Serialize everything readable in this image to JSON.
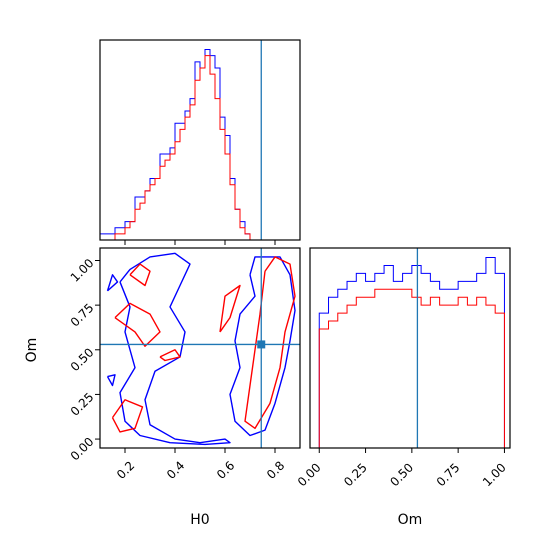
{
  "chart_data": [
    {
      "type": "histogram",
      "panel": "H0 marginal",
      "x_range": [
        0.1,
        0.9
      ],
      "truth": 0.745,
      "bin_edges_start": 0.1,
      "bin_width": 0.02,
      "series": [
        {
          "color": "#0000ff",
          "values": [
            1,
            1,
            1,
            2,
            2,
            3,
            3,
            7,
            7,
            8,
            10,
            10,
            14,
            14,
            15,
            19,
            19,
            21,
            23,
            29,
            28,
            31,
            30,
            28,
            20,
            17,
            10,
            5,
            3,
            1
          ]
        },
        {
          "color": "#ff0000",
          "values": [
            0,
            0,
            0,
            1,
            1,
            2,
            3,
            5,
            6,
            8,
            9,
            10,
            12,
            13,
            14,
            16,
            18,
            20,
            22,
            26,
            28,
            30,
            27,
            23,
            18,
            14,
            9,
            5,
            2,
            1
          ]
        }
      ]
    },
    {
      "type": "histogram",
      "panel": "Om marginal",
      "x_range": [
        -0.05,
        1.03
      ],
      "truth": 0.53,
      "ticks": [
        "0.00",
        "0.25",
        "0.50",
        "0.75",
        "1.00"
      ],
      "xlabel": "Om",
      "bin_edges_start": 0.0,
      "bin_width": 0.05,
      "series": [
        {
          "color": "#0000ff",
          "values": [
            17,
            19,
            20,
            21,
            22,
            21,
            22,
            23,
            21,
            22,
            23,
            22,
            21,
            20,
            20,
            21,
            21,
            22,
            24,
            22
          ]
        },
        {
          "color": "#ff0000",
          "values": [
            15,
            16,
            17,
            18,
            19,
            19,
            20,
            20,
            20,
            20,
            19,
            18,
            19,
            18,
            18,
            19,
            18,
            19,
            18,
            17
          ]
        }
      ]
    },
    {
      "type": "contour",
      "panel": "H0 vs Om joint",
      "x_range": [
        0.1,
        0.9
      ],
      "y_range": [
        -0.05,
        1.07
      ],
      "x_ticks": [
        "0.2",
        "0.4",
        "0.6",
        "0.8"
      ],
      "y_ticks": [
        "0.00",
        "0.25",
        "0.50",
        "0.75",
        "1.00"
      ],
      "xlabel": "H0",
      "ylabel": "Om",
      "truth": {
        "H0": 0.745,
        "Om": 0.53
      },
      "series": [
        {
          "color": "#0000ff",
          "contours": [
            [
              [
                0.18,
                0.88
              ],
              [
                0.22,
                0.95
              ],
              [
                0.3,
                1.02
              ],
              [
                0.4,
                1.04
              ],
              [
                0.46,
                0.98
              ],
              [
                0.42,
                0.86
              ],
              [
                0.38,
                0.74
              ],
              [
                0.44,
                0.6
              ],
              [
                0.42,
                0.46
              ],
              [
                0.32,
                0.38
              ],
              [
                0.28,
                0.22
              ],
              [
                0.3,
                0.08
              ],
              [
                0.4,
                0.0
              ],
              [
                0.5,
                -0.02
              ],
              [
                0.6,
                0.0
              ],
              [
                0.62,
                -0.02
              ],
              [
                0.52,
                -0.03
              ],
              [
                0.38,
                -0.02
              ],
              [
                0.26,
                0.02
              ],
              [
                0.2,
                0.1
              ],
              [
                0.18,
                0.26
              ],
              [
                0.24,
                0.4
              ],
              [
                0.2,
                0.6
              ],
              [
                0.22,
                0.74
              ],
              [
                0.18,
                0.88
              ]
            ],
            [
              [
                0.7,
                0.92
              ],
              [
                0.72,
                1.02
              ],
              [
                0.82,
                1.02
              ],
              [
                0.86,
                0.92
              ],
              [
                0.88,
                0.72
              ],
              [
                0.86,
                0.55
              ],
              [
                0.84,
                0.4
              ],
              [
                0.8,
                0.2
              ],
              [
                0.76,
                0.05
              ],
              [
                0.7,
                0.02
              ],
              [
                0.64,
                0.1
              ],
              [
                0.62,
                0.25
              ],
              [
                0.66,
                0.4
              ],
              [
                0.64,
                0.55
              ],
              [
                0.66,
                0.7
              ],
              [
                0.72,
                0.8
              ],
              [
                0.7,
                0.92
              ]
            ],
            [
              [
                0.13,
                0.35
              ],
              [
                0.15,
                0.3
              ],
              [
                0.16,
                0.36
              ],
              [
                0.13,
                0.35
              ]
            ],
            [
              [
                0.13,
                0.83
              ],
              [
                0.17,
                0.88
              ],
              [
                0.15,
                0.92
              ],
              [
                0.13,
                0.83
              ]
            ]
          ]
        },
        {
          "color": "#ff0000",
          "contours": [
            [
              [
                0.22,
                0.92
              ],
              [
                0.26,
                0.98
              ],
              [
                0.3,
                0.94
              ],
              [
                0.28,
                0.86
              ],
              [
                0.22,
                0.92
              ]
            ],
            [
              [
                0.16,
                0.68
              ],
              [
                0.22,
                0.76
              ],
              [
                0.3,
                0.7
              ],
              [
                0.34,
                0.6
              ],
              [
                0.28,
                0.52
              ],
              [
                0.24,
                0.6
              ],
              [
                0.16,
                0.68
              ]
            ],
            [
              [
                0.15,
                0.12
              ],
              [
                0.2,
                0.22
              ],
              [
                0.27,
                0.18
              ],
              [
                0.24,
                0.06
              ],
              [
                0.18,
                0.04
              ],
              [
                0.15,
                0.12
              ]
            ],
            [
              [
                0.76,
                0.94
              ],
              [
                0.8,
                1.02
              ],
              [
                0.86,
                0.98
              ],
              [
                0.88,
                0.8
              ],
              [
                0.84,
                0.6
              ],
              [
                0.82,
                0.4
              ],
              [
                0.78,
                0.2
              ],
              [
                0.72,
                0.06
              ],
              [
                0.68,
                0.1
              ],
              [
                0.7,
                0.3
              ],
              [
                0.72,
                0.5
              ],
              [
                0.74,
                0.7
              ],
              [
                0.76,
                0.94
              ]
            ],
            [
              [
                0.58,
                0.6
              ],
              [
                0.6,
                0.8
              ],
              [
                0.66,
                0.86
              ],
              [
                0.62,
                0.68
              ],
              [
                0.58,
                0.6
              ]
            ],
            [
              [
                0.34,
                0.46
              ],
              [
                0.4,
                0.5
              ],
              [
                0.42,
                0.46
              ],
              [
                0.36,
                0.44
              ],
              [
                0.34,
                0.46
              ]
            ]
          ]
        }
      ]
    }
  ]
}
